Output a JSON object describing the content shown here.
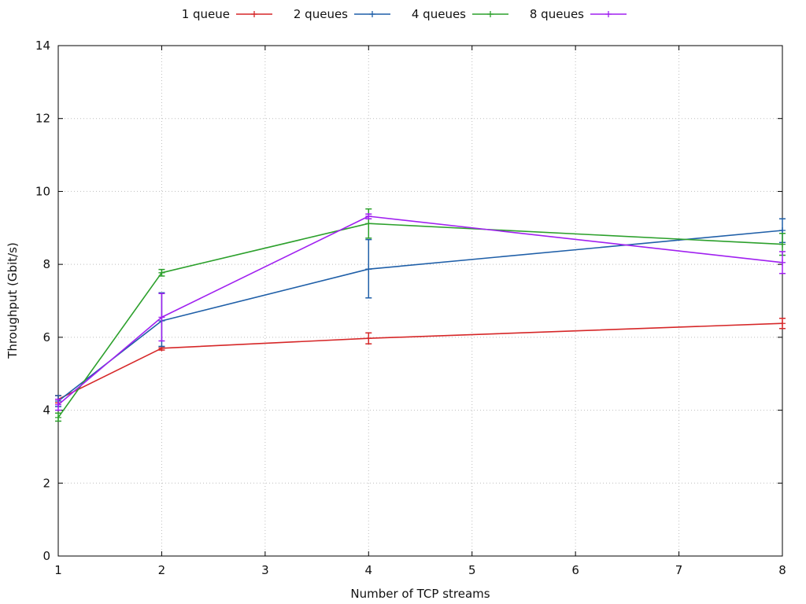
{
  "chart_data": {
    "type": "line",
    "xlabel": "Number of TCP streams",
    "ylabel": "Throughput (Gbit/s)",
    "x_tick_labels": [
      "1",
      "2",
      "3",
      "4",
      "5",
      "6",
      "7",
      "8"
    ],
    "y_ticks": [
      0,
      2,
      4,
      6,
      8,
      10,
      12,
      14
    ],
    "y_tick_labels": [
      "0",
      "2",
      "4",
      "6",
      "8",
      "10",
      "12",
      "14"
    ],
    "ylim": [
      0,
      14
    ],
    "grid": true,
    "legend_position": "top-center",
    "x_tick_positions": [
      1,
      2,
      3,
      4,
      5,
      6,
      7,
      8
    ],
    "x": [
      1,
      2,
      4,
      8
    ],
    "error_bars": true,
    "series": [
      {
        "name": "1 queue",
        "color": "#d62728",
        "values": [
          4.3,
          5.7,
          5.97,
          6.38
        ],
        "err_low": [
          4.2,
          5.65,
          5.82,
          6.24
        ],
        "err_high": [
          4.4,
          5.74,
          6.12,
          6.52
        ]
      },
      {
        "name": "2 queues",
        "color": "#1f5fa8",
        "values": [
          4.25,
          6.45,
          7.87,
          8.93
        ],
        "err_low": [
          4.1,
          5.75,
          7.08,
          8.6
        ],
        "err_high": [
          4.4,
          7.22,
          8.68,
          9.25
        ]
      },
      {
        "name": "4 queues",
        "color": "#2ca02c",
        "values": [
          3.8,
          7.77,
          9.12,
          8.55
        ],
        "err_low": [
          3.7,
          7.68,
          8.72,
          8.25
        ],
        "err_high": [
          3.92,
          7.86,
          9.52,
          8.85
        ]
      },
      {
        "name": "8 queues",
        "color": "#a020f0",
        "values": [
          4.15,
          6.55,
          9.32,
          8.05
        ],
        "err_low": [
          4.0,
          5.9,
          9.25,
          7.75
        ],
        "err_high": [
          4.3,
          7.2,
          9.38,
          8.35
        ]
      }
    ]
  }
}
